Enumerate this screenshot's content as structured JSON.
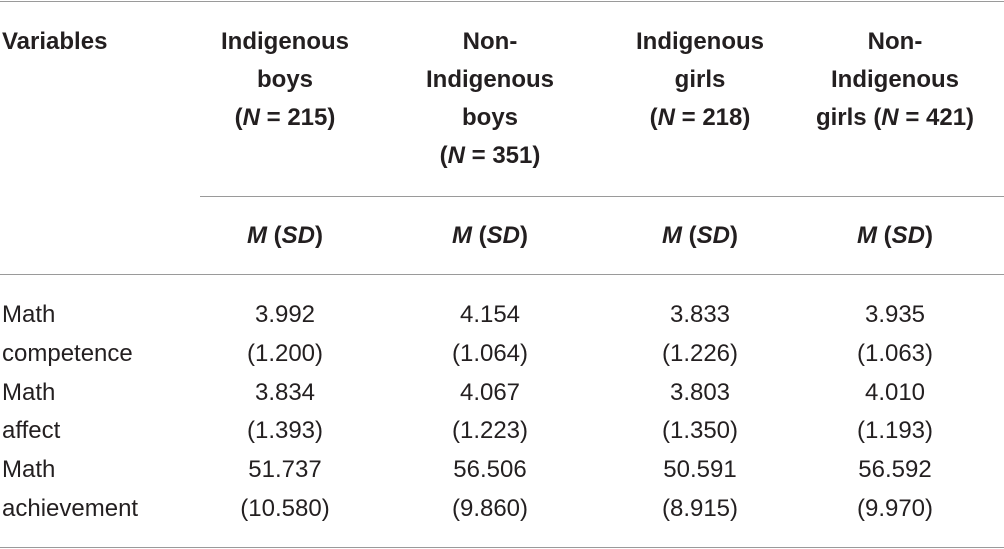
{
  "table": {
    "header": [
      [
        [
          {
            "text": "Variables"
          }
        ]
      ],
      [
        [
          {
            "text": "Indigenous"
          }
        ],
        [
          {
            "text": "boys"
          }
        ],
        [
          {
            "text": "("
          },
          {
            "text": "N",
            "italic": true
          },
          {
            "text": " = 215)"
          }
        ]
      ],
      [
        [
          {
            "text": "Non-"
          }
        ],
        [
          {
            "text": "Indigenous"
          }
        ],
        [
          {
            "text": "boys"
          }
        ],
        [
          {
            "text": "("
          },
          {
            "text": "N",
            "italic": true
          },
          {
            "text": " = 351)"
          }
        ]
      ],
      [
        [
          {
            "text": "Indigenous"
          }
        ],
        [
          {
            "text": "girls"
          }
        ],
        [
          {
            "text": "("
          },
          {
            "text": "N",
            "italic": true
          },
          {
            "text": " = 218)"
          }
        ]
      ],
      [
        [
          {
            "text": "Non-"
          }
        ],
        [
          {
            "text": "Indigenous"
          }
        ],
        [
          {
            "text": "girls ("
          },
          {
            "text": "N",
            "italic": true
          },
          {
            "text": " = 421)"
          }
        ]
      ]
    ],
    "subheader": [
      [
        {
          "text": "M",
          "italic": true
        },
        {
          "text": " ("
        },
        {
          "text": "SD",
          "italic": true
        },
        {
          "text": ")"
        }
      ],
      [
        {
          "text": "M",
          "italic": true
        },
        {
          "text": " ("
        },
        {
          "text": "SD",
          "italic": true
        },
        {
          "text": ")"
        }
      ],
      [
        {
          "text": "M",
          "italic": true
        },
        {
          "text": " ("
        },
        {
          "text": "SD",
          "italic": true
        },
        {
          "text": ")"
        }
      ],
      [
        {
          "text": "M",
          "italic": true
        },
        {
          "text": " ("
        },
        {
          "text": "SD",
          "italic": true
        },
        {
          "text": ")"
        }
      ]
    ],
    "rows": [
      {
        "variable": "Math",
        "cells": [
          "3.992",
          "4.154",
          "3.833",
          "3.935"
        ]
      },
      {
        "variable": "competence",
        "cells": [
          "(1.200)",
          "(1.064)",
          "(1.226)",
          "(1.063)"
        ]
      },
      {
        "variable": "Math",
        "cells": [
          "3.834",
          "4.067",
          "3.803",
          "4.010"
        ]
      },
      {
        "variable": "affect",
        "cells": [
          "(1.393)",
          "(1.223)",
          "(1.350)",
          "(1.193)"
        ]
      },
      {
        "variable": "Math",
        "cells": [
          "51.737",
          "56.506",
          "50.591",
          "56.592"
        ]
      },
      {
        "variable": "achievement",
        "cells": [
          "(10.580)",
          "(9.860)",
          "(8.915)",
          "(9.970)"
        ]
      }
    ]
  }
}
